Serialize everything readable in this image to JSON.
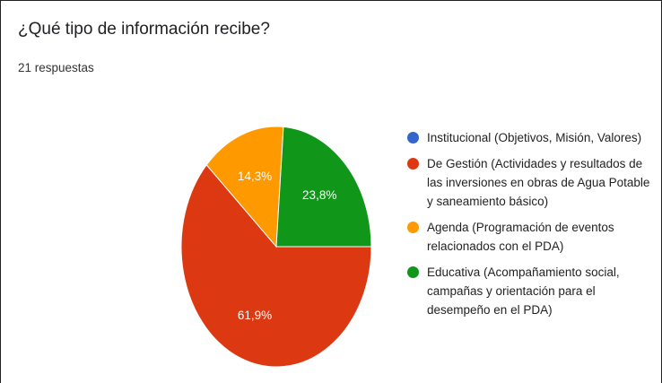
{
  "chart_data": {
    "type": "pie",
    "title": "¿Qué tipo de información recibe?",
    "subtitle": "21 respuestas",
    "categories": [
      "Institucional (Objetivos, Misión, Valores)",
      "De Gestión (Actividades y resultados de las inversiones en obras de Agua Potable y saneamiento básico)",
      "Agenda (Programación de eventos relacionados con el PDA)",
      "Educativa (Acompañamiento social, campañas y orientación para el desempeño en el PDA)"
    ],
    "values": [
      0,
      61.9,
      14.3,
      23.8
    ],
    "value_labels": [
      null,
      "61,9%",
      "14,3%",
      "23,8%"
    ],
    "colors": [
      "#3366cc",
      "#dc3912",
      "#ff9900",
      "#109618"
    ]
  }
}
